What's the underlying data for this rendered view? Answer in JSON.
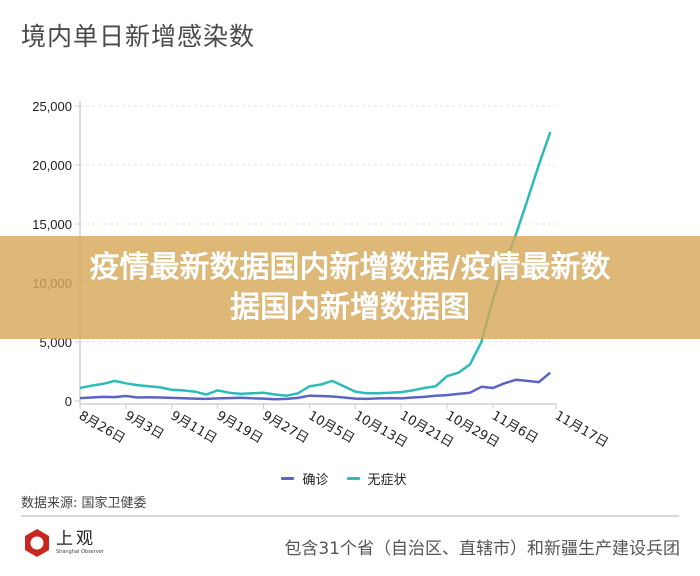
{
  "header": {
    "title": "境内单日新增感染数"
  },
  "banner": {
    "line1": "疫情最新数据国内新增数据/疫情最新数",
    "line2": "据国内新增数据图"
  },
  "legend": {
    "items": [
      {
        "label": "确诊",
        "color": "#5b63c4"
      },
      {
        "label": "无症状",
        "color": "#2bbcb8"
      }
    ]
  },
  "footer": {
    "source": "数据来源: 国家卫健委",
    "logo_cn": "上观",
    "logo_en": "Shanghai Observer",
    "note": "包含31个省（自治区、直辖市）和新疆生产建设兵团"
  },
  "colors": {
    "confirmed": "#5b63c4",
    "asymptomatic": "#2bbcb8",
    "banner": "#d6a858",
    "logo_red": "#c8261f"
  },
  "chart_data": {
    "type": "line",
    "title": "境内单日新增感染数",
    "xlabel": "",
    "ylabel": "",
    "ylim": [
      0,
      25000
    ],
    "yticks": [
      "0",
      "5,000",
      "10,000",
      "15,000",
      "20,000",
      "25,000"
    ],
    "xticks": [
      "8月26日",
      "9月3日",
      "9月11日",
      "9月19日",
      "9月27日",
      "10月5日",
      "10月13日",
      "10月21日",
      "10月29日",
      "11月6日",
      "11月17日"
    ],
    "grid": "horizontal dashed",
    "legend_position": "bottom",
    "x": [
      "8/26",
      "8/28",
      "8/30",
      "9/1",
      "9/3",
      "9/5",
      "9/7",
      "9/9",
      "9/11",
      "9/13",
      "9/15",
      "9/17",
      "9/19",
      "9/21",
      "9/23",
      "9/25",
      "9/27",
      "9/29",
      "10/1",
      "10/3",
      "10/5",
      "10/7",
      "10/9",
      "10/11",
      "10/13",
      "10/15",
      "10/17",
      "10/19",
      "10/21",
      "10/23",
      "10/25",
      "10/27",
      "10/29",
      "10/31",
      "11/2",
      "11/4",
      "11/6",
      "11/8",
      "11/10",
      "11/12",
      "11/14",
      "11/16"
    ],
    "series": [
      {
        "name": "确诊",
        "values": [
          250,
          300,
          350,
          330,
          420,
          300,
          320,
          300,
          260,
          230,
          200,
          180,
          220,
          250,
          280,
          230,
          200,
          150,
          180,
          260,
          450,
          420,
          380,
          300,
          200,
          180,
          220,
          250,
          220,
          300,
          350,
          450,
          500,
          600,
          700,
          1200,
          1100,
          1500,
          1800,
          1700,
          1600,
          2400
        ]
      },
      {
        "name": "无症状",
        "values": [
          1100,
          1300,
          1450,
          1700,
          1500,
          1350,
          1250,
          1150,
          950,
          900,
          800,
          550,
          900,
          700,
          600,
          650,
          700,
          550,
          450,
          650,
          1250,
          1400,
          1700,
          1250,
          800,
          650,
          650,
          700,
          750,
          900,
          1100,
          1250,
          2100,
          2400,
          3100,
          5000,
          8600,
          11500,
          14100,
          17000,
          20000,
          22800
        ]
      }
    ]
  }
}
